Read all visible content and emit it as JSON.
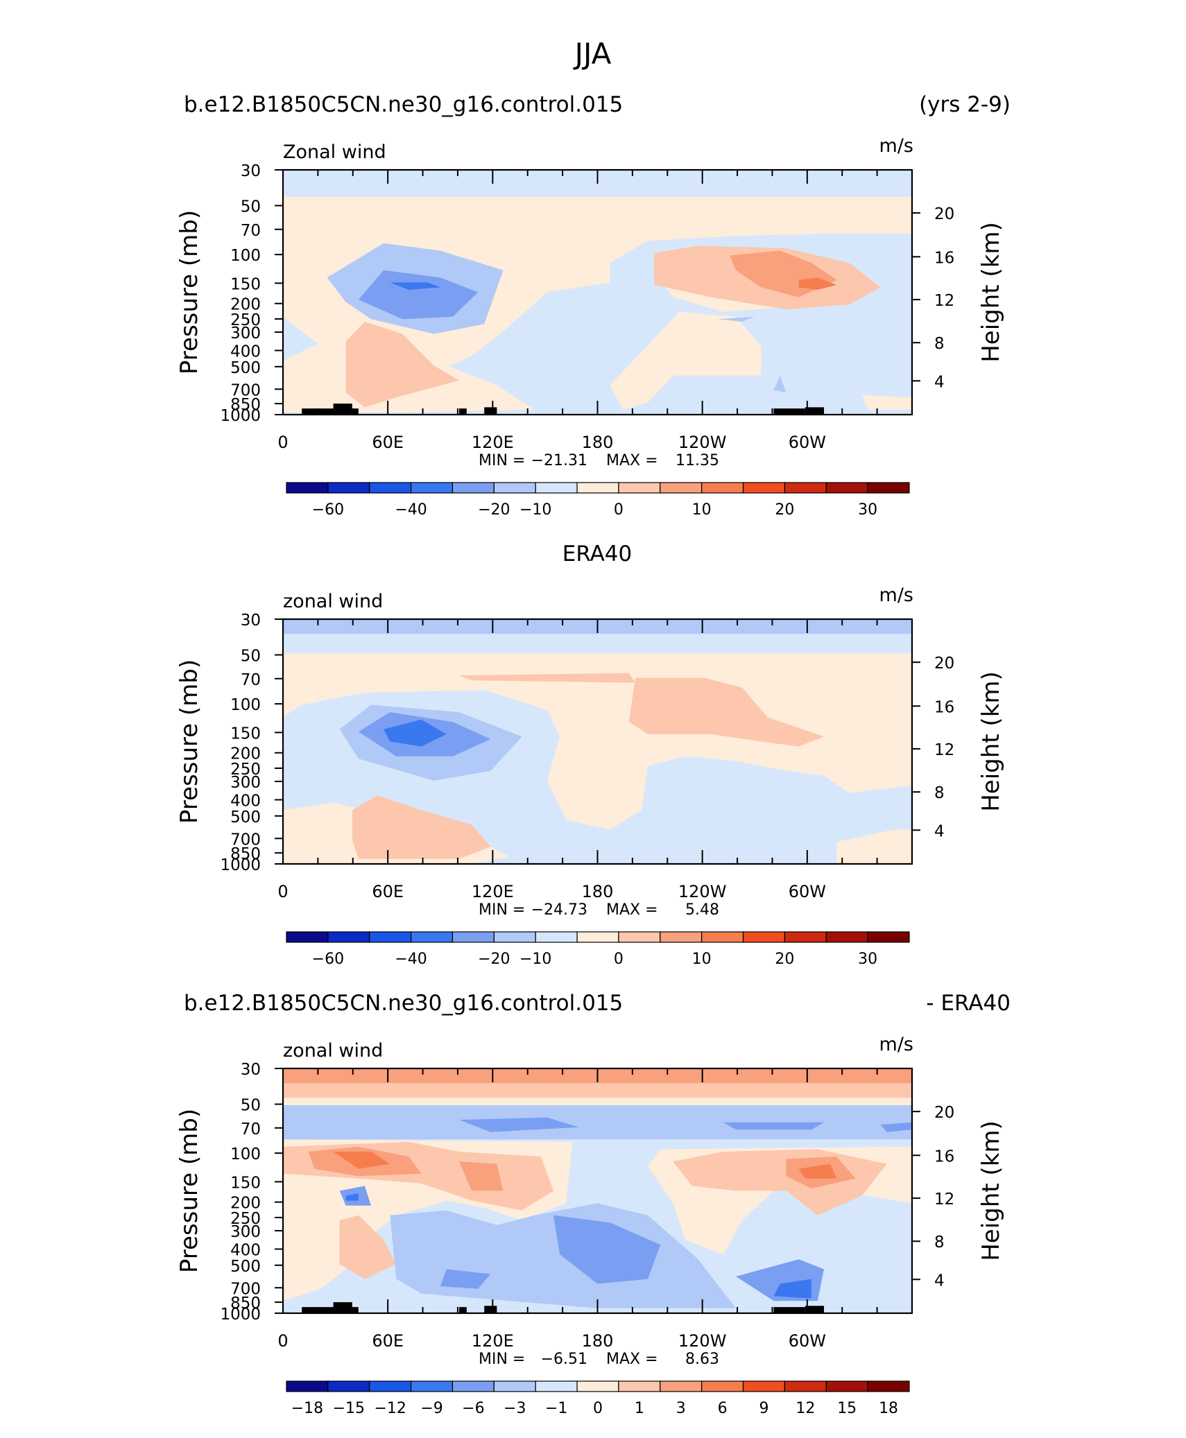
{
  "title": "JJA",
  "colors": {
    "blues": [
      "#0c0a8c",
      "#0a2bc4",
      "#1a56e8",
      "#3a78f0",
      "#7a9ff2",
      "#b1c9f7",
      "#d7e7fb"
    ],
    "reds": [
      "#feeddb",
      "#fcc7ad",
      "#f9a07c",
      "#f67e4e",
      "#ef4f1f",
      "#cf2a12",
      "#a31006",
      "#780000"
    ],
    "land": "#000000"
  },
  "chart_data": [
    {
      "type": "contour",
      "case_name": "b.e12.B1850C5CN.ne30_g16.control.015",
      "period": "(yrs 2-9)",
      "title": "",
      "variable_label": "Zonal wind",
      "units": "m/s",
      "ylabel": "Pressure  (mb)",
      "ylabel_right": "Height  (km)",
      "pressure_ticks": [
        "30",
        "50",
        "70",
        "100",
        "150",
        "200",
        "250",
        "300",
        "400",
        "500",
        "700",
        "850",
        "1000"
      ],
      "height_ticks": [
        "4",
        "8",
        "12",
        "16",
        "20"
      ],
      "x_ticks": [
        "0",
        "60E",
        "120E",
        "180",
        "120W",
        "60W"
      ],
      "stats": {
        "min_label": "MIN = ",
        "min": "−21.31",
        "max_label": "MAX = ",
        "max": "11.35"
      },
      "colorbar": {
        "labels": [
          "−60",
          "−40",
          "−20",
          "−10",
          "0",
          "10",
          "20",
          "30"
        ]
      },
      "show_land": true
    },
    {
      "type": "contour",
      "case_name": "",
      "period": "",
      "title": "ERA40",
      "variable_label": "zonal wind",
      "units": "m/s",
      "ylabel": "Pressure  (mb)",
      "ylabel_right": "Height  (km)",
      "pressure_ticks": [
        "30",
        "50",
        "70",
        "100",
        "150",
        "200",
        "250",
        "300",
        "400",
        "500",
        "700",
        "850",
        "1000"
      ],
      "height_ticks": [
        "4",
        "8",
        "12",
        "16",
        "20"
      ],
      "x_ticks": [
        "0",
        "60E",
        "120E",
        "180",
        "120W",
        "60W"
      ],
      "stats": {
        "min_label": "MIN = ",
        "min": "−24.73",
        "max_label": "MAX = ",
        "max": "5.48"
      },
      "colorbar": {
        "labels": [
          "−60",
          "−40",
          "−20",
          "−10",
          "0",
          "10",
          "20",
          "30"
        ]
      },
      "show_land": false
    },
    {
      "type": "contour",
      "case_name": "b.e12.B1850C5CN.ne30_g16.control.015",
      "period": "- ERA40",
      "title": "",
      "variable_label": "zonal wind",
      "units": "m/s",
      "ylabel": "Pressure  (mb)",
      "ylabel_right": "Height  (km)",
      "pressure_ticks": [
        "30",
        "50",
        "70",
        "100",
        "150",
        "200",
        "250",
        "300",
        "400",
        "500",
        "700",
        "850",
        "1000"
      ],
      "height_ticks": [
        "4",
        "8",
        "12",
        "16",
        "20"
      ],
      "x_ticks": [
        "0",
        "60E",
        "120E",
        "180",
        "120W",
        "60W"
      ],
      "stats": {
        "min_label": "MIN = ",
        "min": "−6.51",
        "max_label": "MAX = ",
        "max": "8.63"
      },
      "colorbar": {
        "labels": [
          "−18",
          "−15",
          "−12",
          "−9",
          "−6",
          "−3",
          "−1",
          "0",
          "1",
          "3",
          "6",
          "9",
          "12",
          "15",
          "18"
        ]
      },
      "show_land": true
    }
  ]
}
